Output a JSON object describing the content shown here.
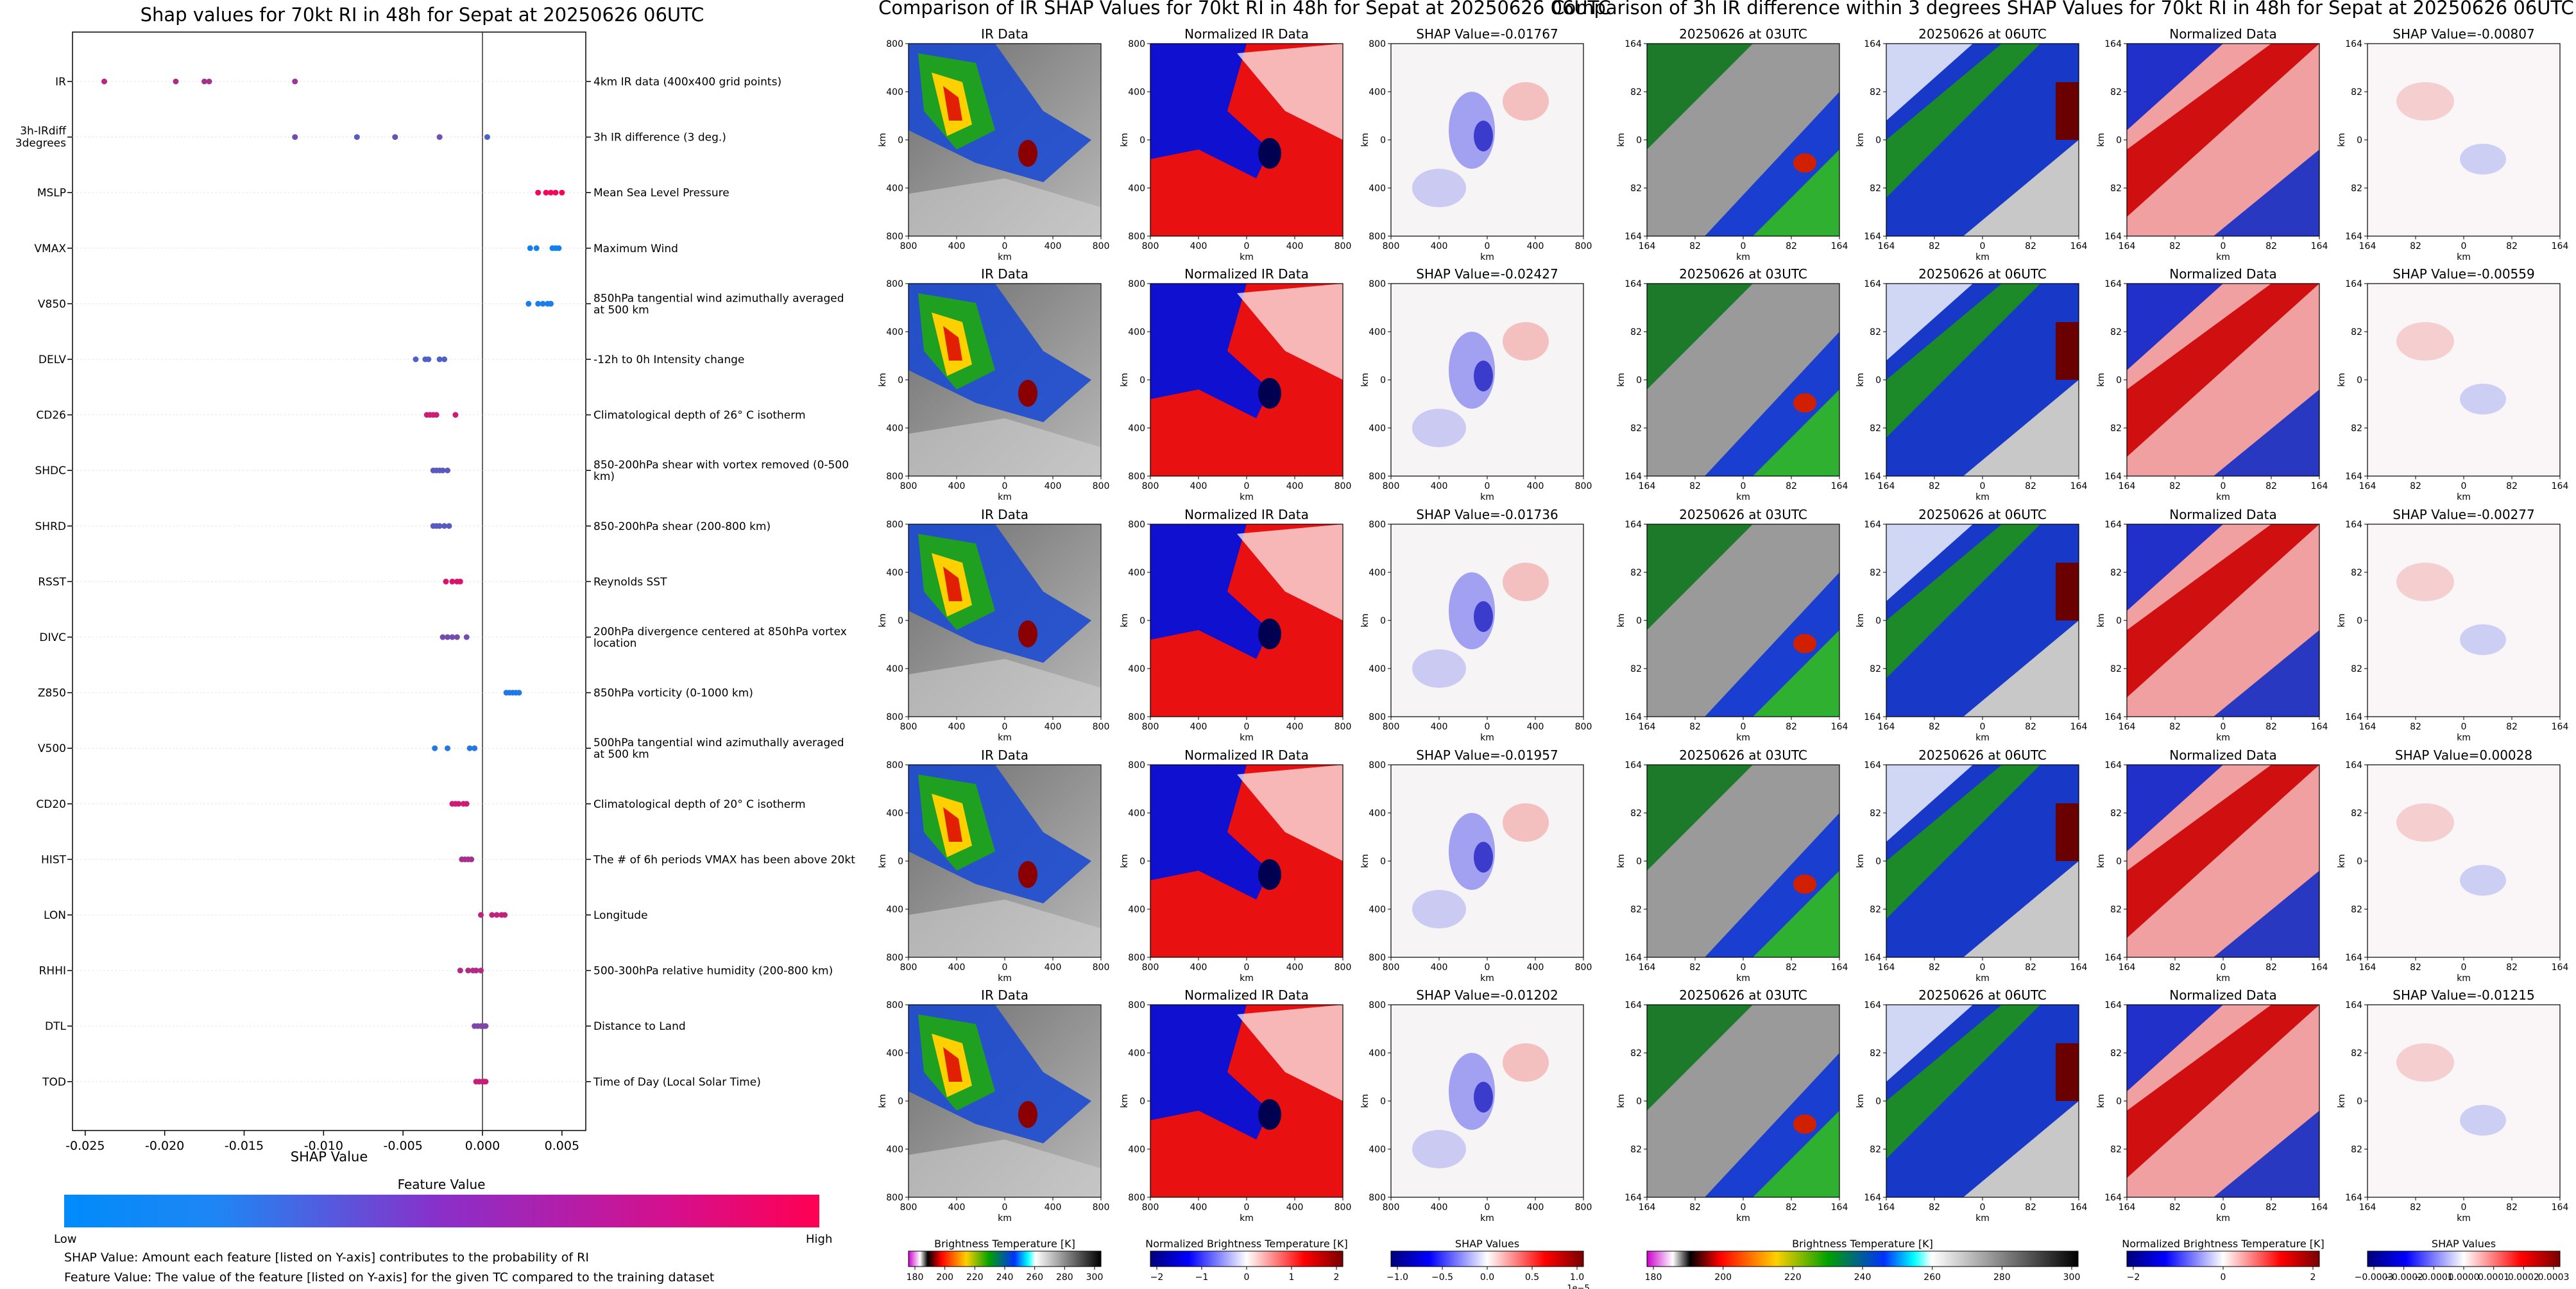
{
  "left_panel": {
    "title": "Shap values for 70kt RI in 48h for Sepat at 20250626 06UTC",
    "xlabel": "SHAP Value",
    "colorbar_title": "Feature Value",
    "colorbar_low": "Low",
    "colorbar_high": "High",
    "colorbar_colors": [
      "#008bfb",
      "#ff0052"
    ],
    "notes": [
      "SHAP Value: Amount each feature [listed on Y-axis] contributes to the probability of RI",
      "Feature Value: The value of the feature [listed on Y-axis] for the given TC compared to the training dataset"
    ]
  },
  "chart_data": {
    "type": "scatter",
    "title": "Shap values for 70kt RI in 48h for Sepat at 20250626 06UTC",
    "xlabel": "SHAP Value",
    "xlim": [
      -0.0258,
      0.0065
    ],
    "xticks": [
      "-0.025",
      "-0.020",
      "-0.015",
      "-0.010",
      "-0.005",
      "0.000",
      "0.005"
    ],
    "xtick_values": [
      -0.025,
      -0.02,
      -0.015,
      -0.01,
      -0.005,
      0.0,
      0.005
    ],
    "features": [
      {
        "name": "IR",
        "desc": "4km IR data (400x400 grid points)",
        "points": [
          [
            -0.0238,
            0.72
          ],
          [
            -0.0193,
            0.68
          ],
          [
            -0.0175,
            0.65
          ],
          [
            -0.0172,
            0.63
          ],
          [
            -0.0118,
            0.62
          ]
        ]
      },
      {
        "name": "3h-IRdiff 3degrees",
        "desc": "3h IR difference (3 deg.)",
        "points": [
          [
            -0.0118,
            0.45
          ],
          [
            -0.0079,
            0.35
          ],
          [
            -0.0055,
            0.4
          ],
          [
            -0.0027,
            0.42
          ],
          [
            0.0003,
            0.3
          ]
        ]
      },
      {
        "name": "MSLP",
        "desc": "Mean Sea Level Pressure",
        "points": [
          [
            0.0035,
            0.95
          ],
          [
            0.004,
            0.95
          ],
          [
            0.0043,
            0.94
          ],
          [
            0.0046,
            0.96
          ],
          [
            0.005,
            0.95
          ]
        ]
      },
      {
        "name": "VMAX",
        "desc": "Maximum Wind",
        "points": [
          [
            0.003,
            0.08
          ],
          [
            0.0034,
            0.08
          ],
          [
            0.0044,
            0.07
          ],
          [
            0.0046,
            0.08
          ],
          [
            0.0048,
            0.08
          ]
        ]
      },
      {
        "name": "V850",
        "desc": "850hPa tangential wind azimuthally averaged at 500 km",
        "points": [
          [
            0.0029,
            0.1
          ],
          [
            0.0035,
            0.1
          ],
          [
            0.0038,
            0.11
          ],
          [
            0.0041,
            0.1
          ],
          [
            0.0043,
            0.1
          ]
        ]
      },
      {
        "name": "DELV",
        "desc": "-12h to 0h Intensity change",
        "points": [
          [
            -0.0042,
            0.3
          ],
          [
            -0.0036,
            0.3
          ],
          [
            -0.0034,
            0.3
          ],
          [
            -0.0027,
            0.3
          ],
          [
            -0.0024,
            0.3
          ]
        ]
      },
      {
        "name": "CD26",
        "desc": "Climatological depth of 26° C isotherm",
        "points": [
          [
            -0.0035,
            0.8
          ],
          [
            -0.0033,
            0.8
          ],
          [
            -0.0031,
            0.8
          ],
          [
            -0.0029,
            0.8
          ],
          [
            -0.0017,
            0.8
          ]
        ]
      },
      {
        "name": "SHDC",
        "desc": "850-200hPa shear with vortex removed (0-500 km)",
        "points": [
          [
            -0.0031,
            0.35
          ],
          [
            -0.0029,
            0.35
          ],
          [
            -0.0027,
            0.35
          ],
          [
            -0.0025,
            0.35
          ],
          [
            -0.0022,
            0.35
          ]
        ]
      },
      {
        "name": "SHRD",
        "desc": "850-200hPa shear (200-800 km)",
        "points": [
          [
            -0.0031,
            0.35
          ],
          [
            -0.0029,
            0.35
          ],
          [
            -0.0027,
            0.35
          ],
          [
            -0.0024,
            0.35
          ],
          [
            -0.0021,
            0.35
          ]
        ]
      },
      {
        "name": "RSST",
        "desc": "Reynolds SST",
        "points": [
          [
            -0.0023,
            0.85
          ],
          [
            -0.0019,
            0.85
          ],
          [
            -0.0016,
            0.85
          ],
          [
            -0.0014,
            0.85
          ]
        ]
      },
      {
        "name": "DIVC",
        "desc": "200hPa divergence centered at 850hPa vortex location",
        "points": [
          [
            -0.0025,
            0.45
          ],
          [
            -0.0022,
            0.45
          ],
          [
            -0.0019,
            0.45
          ],
          [
            -0.0016,
            0.45
          ],
          [
            -0.001,
            0.45
          ]
        ]
      },
      {
        "name": "Z850",
        "desc": "850hPa vorticity (0-1000 km)",
        "points": [
          [
            0.0015,
            0.12
          ],
          [
            0.0017,
            0.12
          ],
          [
            0.0019,
            0.12
          ],
          [
            0.0021,
            0.12
          ],
          [
            0.0023,
            0.12
          ]
        ]
      },
      {
        "name": "V500",
        "desc": "500hPa tangential wind azimuthally averaged at 500 km",
        "points": [
          [
            -0.003,
            0.15
          ],
          [
            -0.0022,
            0.15
          ],
          [
            -0.0008,
            0.15
          ],
          [
            -0.0005,
            0.15
          ]
        ]
      },
      {
        "name": "CD20",
        "desc": "Climatological depth of 20° C isotherm",
        "points": [
          [
            -0.0019,
            0.8
          ],
          [
            -0.0017,
            0.8
          ],
          [
            -0.0015,
            0.8
          ],
          [
            -0.0012,
            0.8
          ],
          [
            -0.001,
            0.8
          ]
        ]
      },
      {
        "name": "HIST",
        "desc": "The # of 6h periods VMAX has been above 20kt",
        "points": [
          [
            -0.0013,
            0.65
          ],
          [
            -0.0011,
            0.65
          ],
          [
            -0.0009,
            0.65
          ],
          [
            -0.0007,
            0.65
          ]
        ]
      },
      {
        "name": "LON",
        "desc": "Longitude",
        "points": [
          [
            -0.0001,
            0.75
          ],
          [
            0.0006,
            0.75
          ],
          [
            0.0009,
            0.75
          ],
          [
            0.0012,
            0.75
          ],
          [
            0.0014,
            0.75
          ]
        ]
      },
      {
        "name": "RHHI",
        "desc": "500-300hPa relative humidity (200-800 km)",
        "points": [
          [
            -0.0014,
            0.7
          ],
          [
            -0.0009,
            0.7
          ],
          [
            -0.0006,
            0.7
          ],
          [
            -0.0004,
            0.7
          ],
          [
            -0.0001,
            0.7
          ]
        ]
      },
      {
        "name": "DTL",
        "desc": "Distance to Land",
        "points": [
          [
            -0.0005,
            0.5
          ],
          [
            -0.0003,
            0.5
          ],
          [
            -0.0001,
            0.5
          ],
          [
            0.0001,
            0.5
          ],
          [
            0.0002,
            0.5
          ]
        ]
      },
      {
        "name": "TOD",
        "desc": "Time of Day (Local Solar Time)",
        "points": [
          [
            -0.0004,
            0.78
          ],
          [
            -0.0002,
            0.78
          ],
          [
            0.0,
            0.78
          ],
          [
            0.0001,
            0.78
          ],
          [
            0.0002,
            0.78
          ]
        ]
      }
    ]
  },
  "middle_panel": {
    "title": "Comparison of IR SHAP Values for 70kt RI in 48h for Sepat at 20250626 06UTC",
    "col_titles": [
      "IR Data",
      "Normalized IR Data"
    ],
    "shap_titles": [
      "SHAP Value=-0.01767",
      "SHAP Value=-0.02427",
      "SHAP Value=-0.01736",
      "SHAP Value=-0.01957",
      "SHAP Value=-0.01202"
    ],
    "axis_unit": "km",
    "x_ticks": [
      "800",
      "400",
      "0",
      "400",
      "800"
    ],
    "y_ticks": [
      "800",
      "400",
      "0",
      "400",
      "800"
    ],
    "colorbars": [
      {
        "label": "Brightness Temperature [K]",
        "ticks": [
          "180",
          "200",
          "220",
          "240",
          "260",
          "280",
          "300"
        ],
        "kind": "ir"
      },
      {
        "label": "Normalized Brightness Temperature [K]",
        "ticks": [
          "−2",
          "−1",
          "0",
          "1",
          "2"
        ],
        "kind": "bwr"
      },
      {
        "label": "SHAP Values",
        "ticks": [
          "−1.0",
          "−0.5",
          "0.0",
          "0.5",
          "1.0"
        ],
        "kind": "bwr",
        "exponent": "1e−5"
      }
    ]
  },
  "right_panel": {
    "title": "Comparison of 3h IR difference within 3 degrees SHAP Values for 70kt RI in 48h for Sepat at 20250626 06UTC",
    "col_titles": [
      "20250626 at 03UTC",
      "20250626 at 06UTC",
      "Normalized Data"
    ],
    "shap_titles": [
      "SHAP Value=-0.00807",
      "SHAP Value=-0.00559",
      "SHAP Value=-0.00277",
      "SHAP Value=0.00028",
      "SHAP Value=-0.01215"
    ],
    "axis_unit": "km",
    "x_ticks": [
      "164",
      "82",
      "0",
      "82",
      "164"
    ],
    "y_ticks": [
      "164",
      "82",
      "0",
      "82",
      "164"
    ],
    "colorbars": [
      {
        "label": "Brightness Temperature [K]",
        "ticks": [
          "180",
          "200",
          "220",
          "240",
          "260",
          "280",
          "300"
        ],
        "kind": "ir"
      },
      {
        "label": "Normalized Brightness Temperature [K]",
        "ticks": [
          "−2",
          "0",
          "2"
        ],
        "kind": "bwr"
      },
      {
        "label": "SHAP Values",
        "ticks": [
          "−0.0003",
          "−0.0002",
          "−0.0001",
          "0.0000",
          "0.0001",
          "0.0002",
          "0.0003"
        ],
        "kind": "bwr"
      }
    ]
  }
}
